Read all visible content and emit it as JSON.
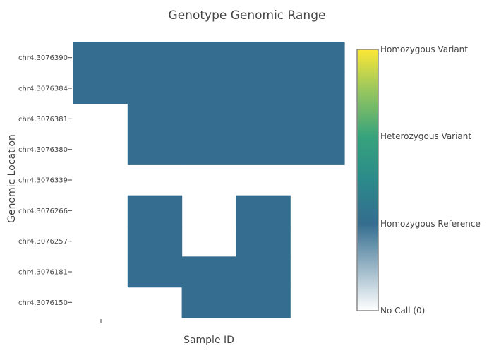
{
  "chart_data": {
    "type": "heatmap",
    "title": "Genotype Genomic Range",
    "xlabel": "Sample ID",
    "ylabel": "Genomic Location",
    "y_categories": [
      "chr4,3076390",
      "chr4,3076384",
      "chr4,3076381",
      "chr4,3076380",
      "chr4,3076339",
      "chr4,3076266",
      "chr4,3076257",
      "chr4,3076181",
      "chr4,3076150"
    ],
    "columns": 5,
    "z": [
      [
        1,
        1,
        1,
        1,
        1
      ],
      [
        1,
        1,
        1,
        1,
        1
      ],
      [
        null,
        1,
        1,
        1,
        1
      ],
      [
        null,
        1,
        1,
        1,
        1
      ],
      [
        null,
        null,
        null,
        null,
        null
      ],
      [
        null,
        1,
        null,
        1,
        null
      ],
      [
        null,
        1,
        null,
        1,
        null
      ],
      [
        null,
        1,
        1,
        1,
        null
      ],
      [
        null,
        null,
        1,
        1,
        null
      ]
    ],
    "colorscale": {
      "range": [
        0,
        3
      ],
      "ticks": [
        {
          "value": 3,
          "label": "Homozygous Variant"
        },
        {
          "value": 2,
          "label": "Heterozygous Variant"
        },
        {
          "value": 1,
          "label": "Homozygous Reference"
        },
        {
          "value": 0,
          "label": "No Call (0)"
        }
      ]
    },
    "cell_color": "#346d8f"
  }
}
